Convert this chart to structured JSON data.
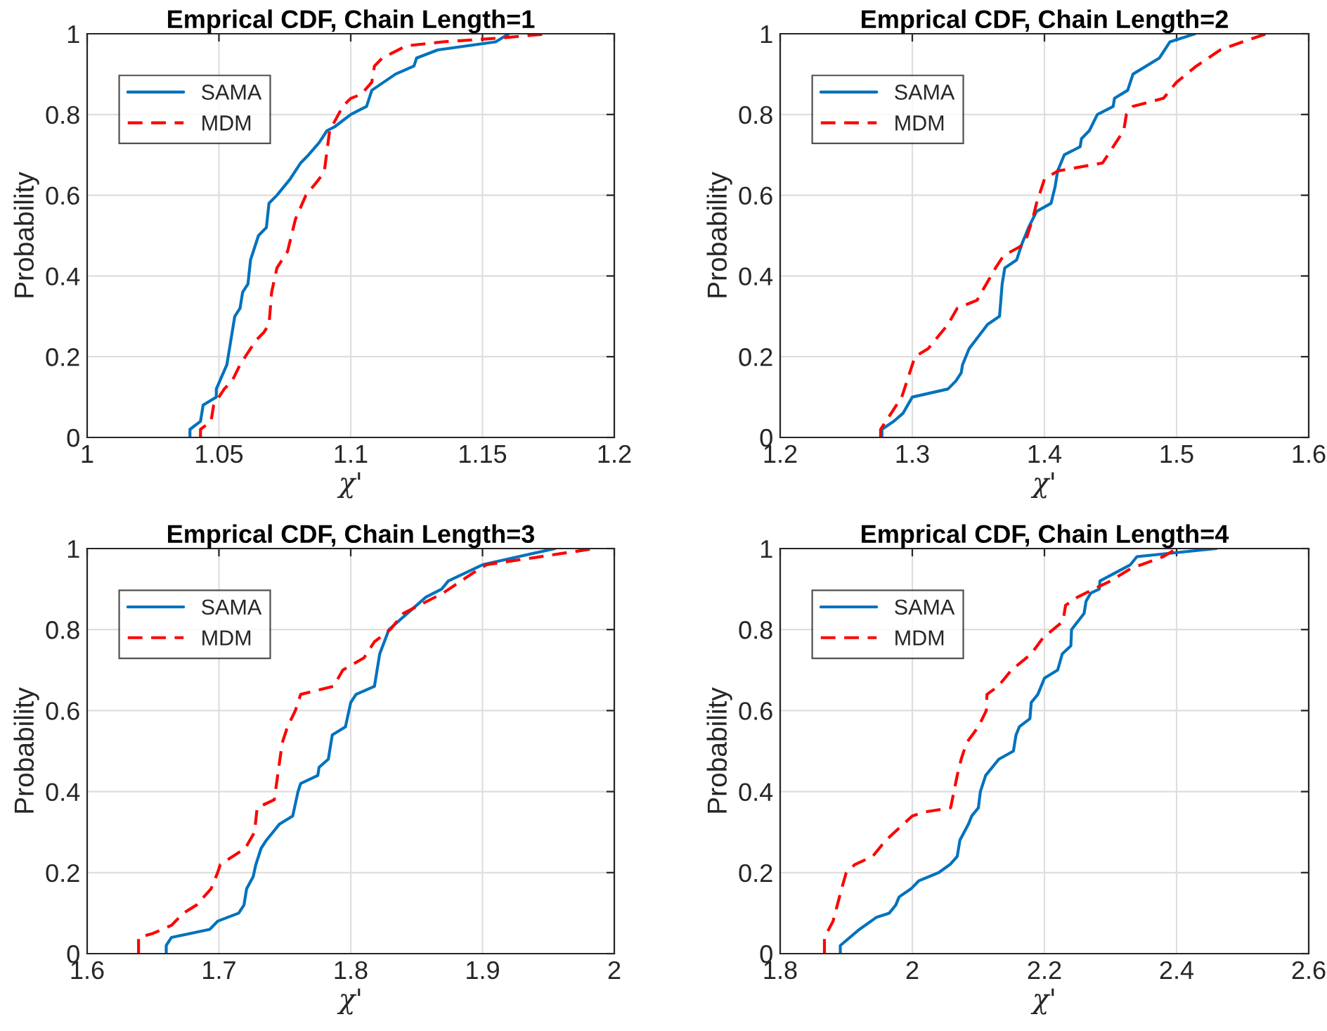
{
  "chart_data": [
    {
      "type": "line",
      "title": "Emprical CDF, Chain Length=1",
      "xlabel": "χ'",
      "ylabel": "Probability",
      "xlim": [
        1,
        1.2
      ],
      "xticks": [
        1,
        1.05,
        1.1,
        1.15,
        1.2
      ],
      "ylim": [
        0,
        1
      ],
      "yticks": [
        0,
        0.2,
        0.4,
        0.6,
        0.8,
        1
      ],
      "grid": true,
      "legend": "top left",
      "series": [
        {
          "name": "SAMA",
          "color": "#0072bd",
          "line_style": "solid",
          "x": [
            1.039,
            1.039,
            1.043,
            1.044,
            1.049,
            1.049,
            1.053,
            1.054,
            1.056,
            1.058,
            1.059,
            1.061,
            1.062,
            1.065,
            1.068,
            1.069,
            1.072,
            1.077,
            1.081,
            1.084,
            1.088,
            1.091,
            1.094,
            1.1,
            1.106,
            1.108,
            1.117,
            1.124,
            1.125,
            1.133,
            1.155,
            1.16
          ],
          "values": [
            0,
            0.02,
            0.04,
            0.08,
            0.1,
            0.12,
            0.18,
            0.22,
            0.3,
            0.32,
            0.36,
            0.38,
            0.44,
            0.5,
            0.52,
            0.58,
            0.6,
            0.64,
            0.68,
            0.7,
            0.73,
            0.76,
            0.77,
            0.8,
            0.82,
            0.86,
            0.9,
            0.92,
            0.94,
            0.96,
            0.98,
            1.0
          ]
        },
        {
          "name": "MDM",
          "color": "#ff0000",
          "line_style": "dashed",
          "x": [
            1.043,
            1.043,
            1.047,
            1.048,
            1.05,
            1.052,
            1.055,
            1.058,
            1.06,
            1.064,
            1.067,
            1.069,
            1.07,
            1.072,
            1.076,
            1.079,
            1.083,
            1.088,
            1.09,
            1.092,
            1.097,
            1.1,
            1.104,
            1.108,
            1.109,
            1.112,
            1.121,
            1.135,
            1.158,
            1.175
          ],
          "values": [
            0,
            0.02,
            0.04,
            0.08,
            0.1,
            0.12,
            0.14,
            0.18,
            0.2,
            0.24,
            0.26,
            0.28,
            0.36,
            0.42,
            0.46,
            0.54,
            0.6,
            0.64,
            0.66,
            0.76,
            0.82,
            0.84,
            0.85,
            0.88,
            0.92,
            0.94,
            0.97,
            0.98,
            0.99,
            1.0
          ]
        }
      ]
    },
    {
      "type": "line",
      "title": "Emprical CDF, Chain Length=2",
      "xlabel": "χ'",
      "ylabel": "Probability",
      "xlim": [
        1.2,
        1.6
      ],
      "xticks": [
        1.2,
        1.3,
        1.4,
        1.5,
        1.6
      ],
      "ylim": [
        0,
        1
      ],
      "yticks": [
        0,
        0.2,
        0.4,
        0.6,
        0.8,
        1
      ],
      "grid": true,
      "legend": "top left",
      "series": [
        {
          "name": "SAMA",
          "color": "#0072bd",
          "line_style": "solid",
          "x": [
            1.277,
            1.277,
            1.286,
            1.293,
            1.3,
            1.327,
            1.333,
            1.337,
            1.338,
            1.343,
            1.35,
            1.357,
            1.366,
            1.368,
            1.37,
            1.379,
            1.383,
            1.388,
            1.394,
            1.405,
            1.408,
            1.41,
            1.415,
            1.427,
            1.428,
            1.434,
            1.44,
            1.452,
            1.453,
            1.463,
            1.467,
            1.487,
            1.495,
            1.514
          ],
          "values": [
            0,
            0.02,
            0.04,
            0.06,
            0.1,
            0.12,
            0.14,
            0.16,
            0.18,
            0.22,
            0.25,
            0.28,
            0.3,
            0.38,
            0.42,
            0.44,
            0.48,
            0.52,
            0.56,
            0.58,
            0.62,
            0.66,
            0.7,
            0.72,
            0.74,
            0.76,
            0.8,
            0.82,
            0.84,
            0.86,
            0.9,
            0.94,
            0.98,
            1.0
          ]
        },
        {
          "name": "MDM",
          "color": "#ff0000",
          "line_style": "dashed",
          "x": [
            1.276,
            1.276,
            1.284,
            1.292,
            1.298,
            1.302,
            1.312,
            1.327,
            1.334,
            1.349,
            1.356,
            1.363,
            1.369,
            1.38,
            1.385,
            1.391,
            1.394,
            1.398,
            1.4,
            1.41,
            1.444,
            1.452,
            1.46,
            1.462,
            1.467,
            1.49,
            1.5,
            1.515,
            1.533,
            1.55,
            1.568
          ],
          "values": [
            0,
            0.02,
            0.06,
            0.1,
            0.16,
            0.2,
            0.22,
            0.28,
            0.32,
            0.34,
            0.38,
            0.42,
            0.45,
            0.47,
            0.48,
            0.54,
            0.58,
            0.62,
            0.64,
            0.66,
            0.68,
            0.72,
            0.76,
            0.8,
            0.82,
            0.84,
            0.88,
            0.92,
            0.96,
            0.98,
            1.0
          ]
        }
      ]
    },
    {
      "type": "line",
      "title": "Emprical CDF, Chain Length=3",
      "xlabel": "χ'",
      "ylabel": "Probability",
      "xlim": [
        1.6,
        2
      ],
      "xticks": [
        1.6,
        1.7,
        1.8,
        1.9,
        2
      ],
      "ylim": [
        0,
        1
      ],
      "yticks": [
        0,
        0.2,
        0.4,
        0.6,
        0.8,
        1
      ],
      "grid": true,
      "legend": "top left",
      "series": [
        {
          "name": "SAMA",
          "color": "#0072bd",
          "line_style": "solid",
          "x": [
            1.66,
            1.66,
            1.664,
            1.693,
            1.699,
            1.715,
            1.719,
            1.721,
            1.726,
            1.728,
            1.732,
            1.736,
            1.741,
            1.746,
            1.756,
            1.76,
            1.762,
            1.775,
            1.776,
            1.783,
            1.786,
            1.796,
            1.8,
            1.804,
            1.818,
            1.822,
            1.829,
            1.843,
            1.857,
            1.869,
            1.874,
            1.9,
            1.955
          ],
          "values": [
            0,
            0.02,
            0.04,
            0.06,
            0.08,
            0.1,
            0.12,
            0.16,
            0.19,
            0.22,
            0.26,
            0.28,
            0.3,
            0.32,
            0.34,
            0.4,
            0.42,
            0.44,
            0.46,
            0.48,
            0.54,
            0.56,
            0.62,
            0.64,
            0.66,
            0.74,
            0.8,
            0.84,
            0.88,
            0.9,
            0.92,
            0.96,
            1.0
          ]
        },
        {
          "name": "MDM",
          "color": "#ff0000",
          "line_style": "dashed",
          "x": [
            1.639,
            1.639,
            1.65,
            1.664,
            1.673,
            1.683,
            1.694,
            1.699,
            1.701,
            1.72,
            1.727,
            1.729,
            1.742,
            1.748,
            1.752,
            1.758,
            1.762,
            1.787,
            1.794,
            1.81,
            1.818,
            1.83,
            1.84,
            1.87,
            1.893,
            1.903,
            1.985
          ],
          "values": [
            0,
            0.04,
            0.05,
            0.07,
            0.1,
            0.12,
            0.16,
            0.2,
            0.22,
            0.26,
            0.3,
            0.36,
            0.38,
            0.52,
            0.56,
            0.6,
            0.64,
            0.66,
            0.7,
            0.73,
            0.77,
            0.8,
            0.84,
            0.89,
            0.94,
            0.96,
            1.0
          ]
        }
      ]
    },
    {
      "type": "line",
      "title": "Emprical CDF, Chain Length=4",
      "xlabel": "χ'",
      "ylabel": "Probability",
      "xlim": [
        1.8,
        2.6
      ],
      "xticks": [
        1.8,
        2,
        2.2,
        2.4,
        2.6
      ],
      "ylim": [
        0,
        1
      ],
      "yticks": [
        0,
        0.2,
        0.4,
        0.6,
        0.8,
        1
      ],
      "grid": true,
      "legend": "top left",
      "series": [
        {
          "name": "SAMA",
          "color": "#0072bd",
          "line_style": "solid",
          "x": [
            1.891,
            1.891,
            1.92,
            1.946,
            1.965,
            1.975,
            1.98,
            1.998,
            2.01,
            2.04,
            2.057,
            2.068,
            2.072,
            2.085,
            2.09,
            2.1,
            2.103,
            2.111,
            2.131,
            2.153,
            2.157,
            2.162,
            2.178,
            2.18,
            2.19,
            2.2,
            2.22,
            2.227,
            2.24,
            2.241,
            2.26,
            2.263,
            2.27,
            2.283,
            2.284,
            2.33,
            2.34,
            2.46
          ],
          "values": [
            0,
            0.02,
            0.06,
            0.09,
            0.1,
            0.12,
            0.14,
            0.16,
            0.18,
            0.2,
            0.22,
            0.24,
            0.28,
            0.32,
            0.34,
            0.36,
            0.4,
            0.44,
            0.48,
            0.5,
            0.54,
            0.56,
            0.58,
            0.62,
            0.64,
            0.68,
            0.7,
            0.74,
            0.76,
            0.8,
            0.84,
            0.87,
            0.89,
            0.9,
            0.92,
            0.96,
            0.98,
            1.0
          ]
        },
        {
          "name": "MDM",
          "color": "#ff0000",
          "line_style": "dashed",
          "x": [
            1.867,
            1.867,
            1.88,
            1.893,
            1.9,
            1.913,
            1.94,
            1.96,
            1.98,
            2.0,
            2.02,
            2.058,
            2.068,
            2.074,
            2.082,
            2.1,
            2.112,
            2.113,
            2.13,
            2.15,
            2.18,
            2.198,
            2.228,
            2.232,
            2.25,
            2.3,
            2.33,
            2.38,
            2.4
          ],
          "values": [
            0,
            0.04,
            0.08,
            0.16,
            0.2,
            0.22,
            0.24,
            0.28,
            0.31,
            0.34,
            0.35,
            0.36,
            0.44,
            0.48,
            0.52,
            0.56,
            0.6,
            0.64,
            0.66,
            0.7,
            0.74,
            0.78,
            0.82,
            0.86,
            0.88,
            0.92,
            0.95,
            0.98,
            1.0
          ]
        }
      ]
    }
  ]
}
